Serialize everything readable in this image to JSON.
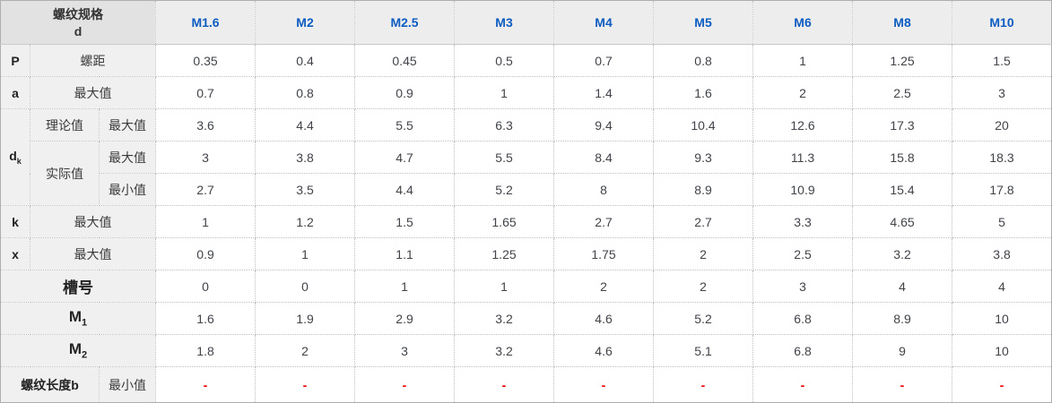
{
  "colors": {
    "column_header_text": "#0d5cc1",
    "body_text": "#40434a",
    "dash_text": "#f00000",
    "corner_bg": "#e2e2e2",
    "header_bg": "#ededed",
    "label_bg": "#f0f0f0",
    "border": "#bfbfbf"
  },
  "table": {
    "corner": {
      "line1": "螺纹规格",
      "line2": "d"
    },
    "columns": [
      "M1.6",
      "M2",
      "M2.5",
      "M3",
      "M4",
      "M5",
      "M6",
      "M8",
      "M10"
    ],
    "rows": [
      {
        "name": "pitch",
        "labels": [
          {
            "text": "P",
            "bold": true
          },
          {
            "text": "螺距",
            "colspan": 2
          }
        ],
        "values": [
          "0.35",
          "0.4",
          "0.45",
          "0.5",
          "0.7",
          "0.8",
          "1",
          "1.25",
          "1.5"
        ]
      },
      {
        "name": "a-max",
        "labels": [
          {
            "text": "a",
            "bold": true
          },
          {
            "text": "最大值",
            "colspan": 2
          }
        ],
        "values": [
          "0.7",
          "0.8",
          "0.9",
          "1",
          "1.4",
          "1.6",
          "2",
          "2.5",
          "3"
        ]
      },
      {
        "name": "dk-theoretical-max",
        "labels": [
          {
            "text": "d",
            "sub": "k",
            "bold": true,
            "rowspan": 3
          },
          {
            "text": "理论值"
          },
          {
            "text": "最大值"
          }
        ],
        "values": [
          "3.6",
          "4.4",
          "5.5",
          "6.3",
          "9.4",
          "10.4",
          "12.6",
          "17.3",
          "20"
        ]
      },
      {
        "name": "dk-actual-max",
        "labels": [
          {
            "text": "实际值",
            "rowspan": 2
          },
          {
            "text": "最大值"
          }
        ],
        "values": [
          "3",
          "3.8",
          "4.7",
          "5.5",
          "8.4",
          "9.3",
          "11.3",
          "15.8",
          "18.3"
        ]
      },
      {
        "name": "dk-actual-min",
        "labels": [
          {
            "text": "最小值"
          }
        ],
        "values": [
          "2.7",
          "3.5",
          "4.4",
          "5.2",
          "8",
          "8.9",
          "10.9",
          "15.4",
          "17.8"
        ]
      },
      {
        "name": "k-max",
        "labels": [
          {
            "text": "k",
            "bold": true
          },
          {
            "text": "最大值",
            "colspan": 2
          }
        ],
        "values": [
          "1",
          "1.2",
          "1.5",
          "1.65",
          "2.7",
          "2.7",
          "3.3",
          "4.65",
          "5"
        ]
      },
      {
        "name": "x-max",
        "labels": [
          {
            "text": "x",
            "bold": true
          },
          {
            "text": "最大值",
            "colspan": 2
          }
        ],
        "values": [
          "0.9",
          "1",
          "1.1",
          "1.25",
          "1.75",
          "2",
          "2.5",
          "3.2",
          "3.8"
        ]
      },
      {
        "name": "slot-number",
        "labels": [
          {
            "text": "槽号",
            "colspan": 3,
            "bold": true,
            "big": true
          }
        ],
        "values": [
          "0",
          "0",
          "1",
          "1",
          "2",
          "2",
          "3",
          "4",
          "4"
        ]
      },
      {
        "name": "m1",
        "labels": [
          {
            "text": "M",
            "sub": "1",
            "colspan": 3,
            "bold": true,
            "big": true
          }
        ],
        "values": [
          "1.6",
          "1.9",
          "2.9",
          "3.2",
          "4.6",
          "5.2",
          "6.8",
          "8.9",
          "10"
        ]
      },
      {
        "name": "m2",
        "labels": [
          {
            "text": "M",
            "sub": "2",
            "colspan": 3,
            "bold": true,
            "big": true
          }
        ],
        "values": [
          "1.8",
          "2",
          "3",
          "3.2",
          "4.6",
          "5.1",
          "6.8",
          "9",
          "10"
        ]
      },
      {
        "name": "thread-length-b-min",
        "labels": [
          {
            "text": "螺纹长度b",
            "colspan": 2,
            "bold": true
          },
          {
            "text": "最小值"
          }
        ],
        "values": [
          "-",
          "-",
          "-",
          "-",
          "-",
          "-",
          "-",
          "-",
          "-"
        ],
        "dash": true,
        "tall": true
      }
    ]
  }
}
